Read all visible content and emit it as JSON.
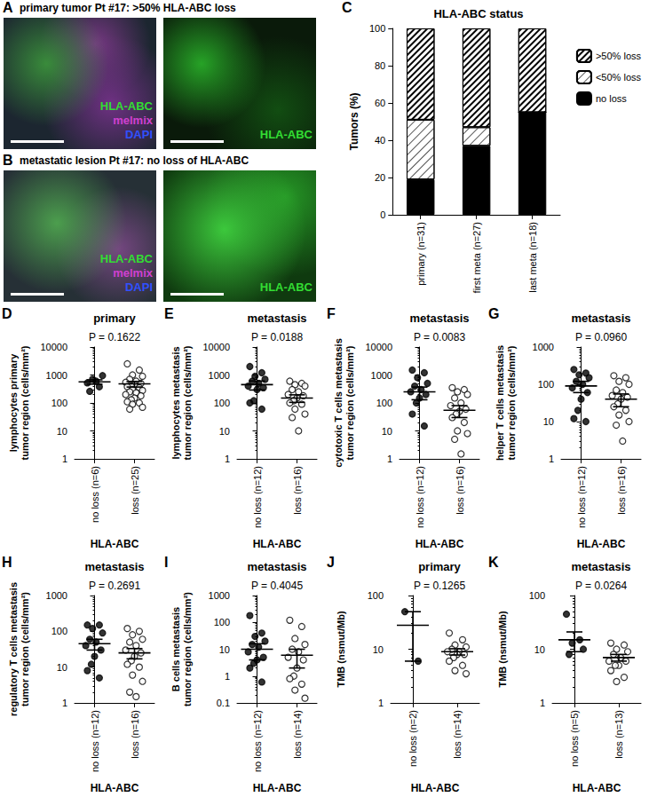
{
  "images": [
    {
      "panel_label": "A",
      "title": "primary tumor Pt #17: >50% HLA-ABC loss",
      "views": [
        {
          "labels": [
            {
              "text": "HLA-ABC",
              "color": "#33dd33"
            },
            {
              "text": "melmix",
              "color": "#d040d0"
            },
            {
              "text": "DAPI",
              "color": "#3050ff"
            }
          ]
        },
        {
          "labels": [
            {
              "text": "HLA-ABC",
              "color": "#33dd33"
            }
          ]
        }
      ]
    },
    {
      "panel_label": "B",
      "title": "metastatic lesion Pt #17: no loss of HLA-ABC",
      "views": [
        {
          "labels": [
            {
              "text": "HLA-ABC",
              "color": "#33dd33"
            },
            {
              "text": "melmix",
              "color": "#d040d0"
            },
            {
              "text": "DAPI",
              "color": "#3050ff"
            }
          ]
        },
        {
          "labels": [
            {
              "text": "HLA-ABC",
              "color": "#33dd33"
            }
          ]
        }
      ]
    }
  ],
  "chart_data": [
    {
      "panel_label": "C",
      "type": "bar",
      "title": "HLA-ABC status",
      "y_label": "Tumors (%)",
      "stacked": true,
      "legend": "right",
      "grid": false,
      "categories": [
        "primary (n=31)",
        "first meta (n=27)",
        "last meta (n=18)"
      ],
      "ylim": [
        0,
        100
      ],
      "yticks": [
        0,
        20,
        40,
        60,
        80,
        100
      ],
      "series": [
        {
          "name": "no loss",
          "color": "#000000",
          "marker": "solid",
          "values": [
            19,
            37,
            55
          ]
        },
        {
          "name": "<50% loss",
          "color": "#ffffff",
          "marker": "light hatch",
          "values": [
            32,
            10,
            0
          ]
        },
        {
          "name": ">50% loss",
          "color": "#ffffff",
          "marker": "hatch",
          "values": [
            49,
            53,
            45
          ]
        }
      ]
    },
    {
      "panel_label": "D",
      "type": "scatter",
      "title": "primary",
      "annotation": "P = 0.1622",
      "y_label": "lymphocytes primary\ntumor region (cells/mm²)",
      "x_label": "HLA-ABC",
      "log": "y",
      "categories": [
        "no loss (n=6)",
        "loss (n=25)"
      ],
      "ylim": [
        1,
        10000
      ],
      "yticks": [
        1,
        10,
        100,
        1000,
        10000
      ],
      "groups": [
        {
          "marker": "filled",
          "color": "#000000",
          "values": [
            520,
            380,
            700,
            950,
            260,
            600
          ],
          "mean": 570,
          "sem": 100
        },
        {
          "marker": "open",
          "color": "#000000",
          "values": [
            2500,
            1500,
            1000,
            900,
            700,
            600,
            550,
            500,
            450,
            400,
            380,
            350,
            300,
            280,
            250,
            230,
            200,
            180,
            150,
            130,
            110,
            100,
            90,
            70,
            60
          ],
          "mean": 480,
          "sem": 110
        }
      ]
    },
    {
      "panel_label": "E",
      "type": "scatter",
      "title": "metastasis",
      "annotation": "P = 0.0188",
      "y_label": "lymphocytes metastasis\ntumor region (cells/mm²)",
      "x_label": "HLA-ABC",
      "log": "y",
      "categories": [
        "no loss (n=12)",
        "loss (n=16)"
      ],
      "ylim": [
        1,
        10000
      ],
      "yticks": [
        1,
        10,
        100,
        1000,
        10000
      ],
      "groups": [
        {
          "marker": "filled",
          "color": "#000000",
          "values": [
            2000,
            1200,
            900,
            700,
            600,
            500,
            400,
            350,
            300,
            120,
            100,
            60
          ],
          "mean": 450,
          "sem": 160
        },
        {
          "marker": "open",
          "color": "#000000",
          "values": [
            600,
            500,
            450,
            400,
            300,
            250,
            200,
            180,
            150,
            120,
            100,
            90,
            60,
            40,
            30,
            10
          ],
          "mean": 150,
          "sem": 45
        }
      ]
    },
    {
      "panel_label": "F",
      "type": "scatter",
      "title": "metastasis",
      "annotation": "P = 0.0083",
      "y_label": "cytotoxic T cells metastasis\ntumor region (cells/mm²)",
      "x_label": "HLA-ABC",
      "log": "y",
      "categories": [
        "no loss (n=12)",
        "loss (n=16)"
      ],
      "ylim": [
        1,
        10000
      ],
      "yticks": [
        1,
        10,
        100,
        1000,
        10000
      ],
      "groups": [
        {
          "marker": "filled",
          "color": "#000000",
          "values": [
            1500,
            1200,
            800,
            500,
            400,
            300,
            250,
            200,
            150,
            100,
            40,
            15
          ],
          "mean": 250,
          "sem": 120
        },
        {
          "marker": "open",
          "color": "#000000",
          "values": [
            350,
            300,
            250,
            200,
            150,
            100,
            80,
            60,
            50,
            40,
            30,
            20,
            10,
            8,
            5,
            1.5
          ],
          "mean": 55,
          "sem": 25
        }
      ]
    },
    {
      "panel_label": "G",
      "type": "scatter",
      "title": "metastasis",
      "annotation": "P = 0.0960",
      "y_label": "helper T cells metastasis\ntumor region (cells/mm²)",
      "x_label": "HLA-ABC",
      "log": "y",
      "categories": [
        "no loss (n=12)",
        "loss (n=16)"
      ],
      "ylim": [
        1,
        1000
      ],
      "yticks": [
        1,
        10,
        100,
        1000
      ],
      "groups": [
        {
          "marker": "filled",
          "color": "#000000",
          "values": [
            250,
            200,
            180,
            150,
            120,
            100,
            80,
            60,
            40,
            20,
            12,
            10
          ],
          "mean": 90,
          "sem": 30
        },
        {
          "marker": "open",
          "color": "#000000",
          "values": [
            170,
            150,
            120,
            100,
            70,
            60,
            50,
            45,
            40,
            30,
            25,
            20,
            15,
            10,
            8,
            3
          ],
          "mean": 40,
          "sem": 15
        }
      ]
    },
    {
      "panel_label": "H",
      "type": "scatter",
      "title": "metastasis",
      "annotation": "P = 0.2691",
      "y_label": "regulatory T cells metastasis\ntumor region (cells/mm²)",
      "x_label": "HLA-ABC",
      "log": "y",
      "categories": [
        "no loss (n=12)",
        "loss (n=16)"
      ],
      "ylim": [
        1,
        1000
      ],
      "yticks": [
        1,
        10,
        100,
        1000
      ],
      "groups": [
        {
          "marker": "filled",
          "color": "#000000",
          "values": [
            150,
            150,
            120,
            90,
            60,
            50,
            40,
            30,
            20,
            12,
            8,
            5
          ],
          "mean": 45,
          "sem": 15
        },
        {
          "marker": "open",
          "color": "#000000",
          "values": [
            120,
            100,
            80,
            60,
            50,
            40,
            30,
            25,
            20,
            15,
            12,
            10,
            6,
            4,
            2,
            1.5
          ],
          "mean": 25,
          "sem": 8
        }
      ]
    },
    {
      "panel_label": "I",
      "type": "scatter",
      "title": "metastasis",
      "annotation": "P = 0.4045",
      "y_label": "B cells metastasis\ntumor region (cells/mm²)",
      "x_label": "HLA-ABC",
      "log": "y",
      "categories": [
        "no loss (n=12)",
        "loss (n=14)"
      ],
      "ylim": [
        0.1,
        1000
      ],
      "yticks": [
        0.1,
        1,
        10,
        100,
        1000
      ],
      "groups": [
        {
          "marker": "filled",
          "color": "#000000",
          "values": [
            180,
            40,
            30,
            20,
            15,
            12,
            8,
            5,
            4,
            3,
            2,
            0.6
          ],
          "mean": 10,
          "sem": 6
        },
        {
          "marker": "open",
          "color": "#000000",
          "values": [
            120,
            70,
            25,
            15,
            10,
            8,
            5,
            4,
            2,
            1,
            0.8,
            0.5,
            0.3,
            0.15
          ],
          "mean": 6,
          "sem": 4
        }
      ]
    },
    {
      "panel_label": "J",
      "type": "scatter",
      "title": "primary",
      "annotation": "P = 0.1265",
      "y_label": "TMB (nsmut/Mb)",
      "x_label": "HLA-ABC",
      "log": "y",
      "categories": [
        "no loss (n=2)",
        "loss (n=14)"
      ],
      "ylim": [
        1,
        100
      ],
      "yticks": [
        1,
        10,
        100
      ],
      "groups": [
        {
          "marker": "filled",
          "color": "#000000",
          "values": [
            50,
            6
          ],
          "mean": 28,
          "sem": 22
        },
        {
          "marker": "open",
          "color": "#000000",
          "values": [
            20,
            15,
            12,
            11,
            10,
            9,
            9,
            8,
            8,
            7,
            6,
            5,
            4,
            3.5
          ],
          "mean": 9,
          "sem": 1.2
        }
      ]
    },
    {
      "panel_label": "K",
      "type": "scatter",
      "title": "metastasis",
      "annotation": "P = 0.0264",
      "y_label": "TMB (nsmut/Mb)",
      "x_label": "HLA-ABC",
      "log": "y",
      "categories": [
        "no loss (n=5)",
        "loss (n=13)"
      ],
      "ylim": [
        1,
        100
      ],
      "yticks": [
        1,
        10,
        100
      ],
      "groups": [
        {
          "marker": "filled",
          "color": "#000000",
          "values": [
            45,
            15,
            13,
            10,
            8
          ],
          "mean": 15,
          "sem": 6
        },
        {
          "marker": "open",
          "color": "#000000",
          "values": [
            13,
            12,
            10,
            9,
            8,
            7,
            6,
            6,
            5,
            5,
            4,
            3,
            2.5
          ],
          "mean": 7,
          "sem": 1
        }
      ]
    }
  ]
}
